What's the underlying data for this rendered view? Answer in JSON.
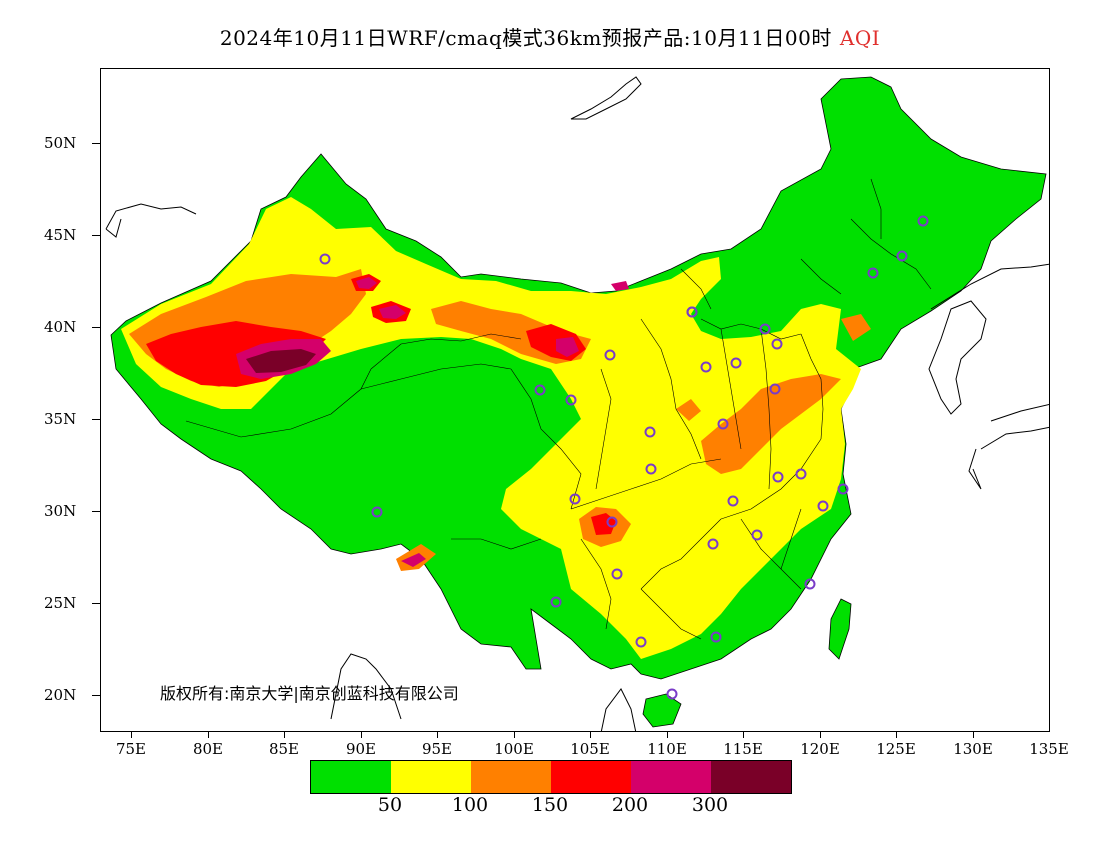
{
  "title": {
    "main": "2024年10月11日WRF/cmaq模式36km预报产品:10月11日00时",
    "product": "AQI",
    "product_color": "#e0302e"
  },
  "map": {
    "lon_range": [
      73,
      135
    ],
    "lat_range": [
      18,
      54
    ],
    "y_axis_labels": [
      "50N",
      "45N",
      "40N",
      "35N",
      "30N",
      "25N",
      "20N"
    ],
    "x_axis_labels": [
      "75E",
      "80E",
      "85E",
      "90E",
      "95E",
      "100E",
      "105E",
      "110E",
      "115E",
      "120E",
      "125E",
      "130E",
      "135E"
    ],
    "copyright": "版权所有:南京大学|南京创蓝科技有限公司",
    "station_marker_color": "#7a3cc8",
    "boundary_color": "#000000"
  },
  "legend": {
    "colors": [
      "#00e000",
      "#ffff00",
      "#ff8000",
      "#ff0000",
      "#d4006a",
      "#7a0028"
    ],
    "labels": [
      "50",
      "100",
      "150",
      "200",
      "300"
    ]
  }
}
